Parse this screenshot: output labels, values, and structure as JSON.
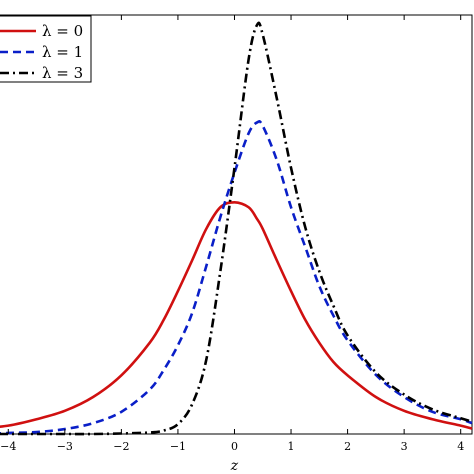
{
  "chart_data": {
    "type": "line",
    "title": "",
    "xlabel": "z",
    "ylabel": "",
    "xlim": [
      -4.5,
      4.2
    ],
    "ylim": [
      0,
      0.85
    ],
    "grid": false,
    "legend_position": "top-left",
    "x_ticks": [
      "−4",
      "−3",
      "−2",
      "−1",
      "0",
      "1",
      "2",
      "3",
      "4"
    ],
    "x_tick_values": [
      -4,
      -3,
      -2,
      -1,
      0,
      1,
      2,
      3,
      4
    ],
    "x": [
      -4.5,
      -4.0,
      -3.5,
      -3.0,
      -2.5,
      -2.0,
      -1.5,
      -1.25,
      -1.0,
      -0.75,
      -0.5,
      -0.25,
      0.0,
      0.25,
      0.4,
      0.5,
      0.75,
      1.0,
      1.25,
      1.5,
      1.75,
      2.0,
      2.5,
      3.0,
      3.5,
      4.0,
      4.2
    ],
    "series": [
      {
        "name": "λ = 0",
        "color": "#d01010",
        "dash": "solid",
        "values": [
          0.011,
          0.017,
          0.03,
          0.047,
          0.075,
          0.119,
          0.185,
          0.232,
          0.29,
          0.352,
          0.416,
          0.46,
          0.47,
          0.46,
          0.436,
          0.416,
          0.352,
          0.29,
          0.232,
          0.185,
          0.146,
          0.119,
          0.075,
          0.047,
          0.03,
          0.017,
          0.011
        ]
      },
      {
        "name": "λ = 1",
        "color": "#0a1fc8",
        "dash": "dashed",
        "values": [
          0.0,
          0.002,
          0.004,
          0.01,
          0.022,
          0.045,
          0.09,
          0.13,
          0.18,
          0.245,
          0.34,
          0.44,
          0.53,
          0.61,
          0.632,
          0.625,
          0.555,
          0.46,
          0.38,
          0.3,
          0.24,
          0.19,
          0.12,
          0.075,
          0.045,
          0.03,
          0.022
        ]
      },
      {
        "name": "λ = 3",
        "color": "#000000",
        "dash": "dashdot",
        "values": [
          0.0,
          0.0,
          0.0,
          0.0,
          0.0,
          0.001,
          0.003,
          0.007,
          0.02,
          0.06,
          0.15,
          0.33,
          0.54,
          0.76,
          0.83,
          0.81,
          0.68,
          0.54,
          0.42,
          0.33,
          0.26,
          0.2,
          0.125,
          0.08,
          0.05,
          0.032,
          0.025
        ]
      }
    ]
  }
}
